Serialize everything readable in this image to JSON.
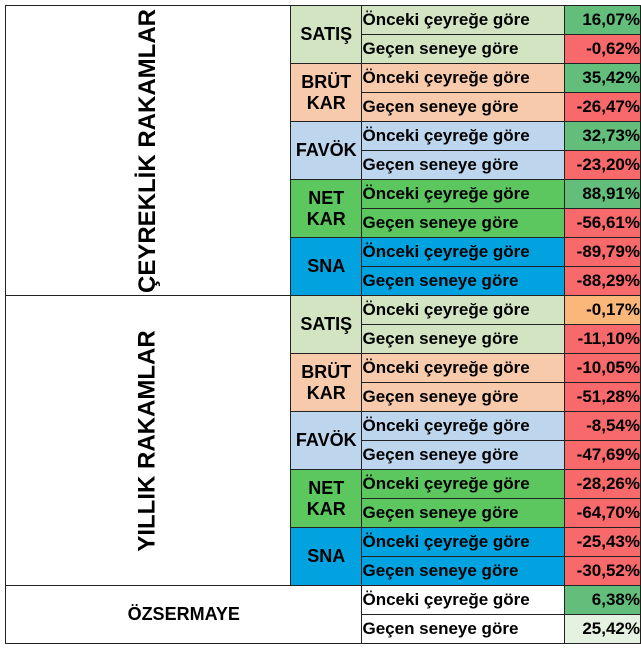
{
  "colors": {
    "satis": "#d2e4c2",
    "brut_kar": "#f7caac",
    "favok": "#bdd6ee",
    "net_kar": "#5cc65f",
    "sna": "#00a3e0",
    "positive": "#63be7b",
    "positive_light": "#e6f2e1",
    "negative": "#f8696b",
    "neutral": "#fbb77a"
  },
  "sections": [
    {
      "label": "ÇEYREKLİK RAKAMLAR",
      "groups": [
        {
          "metric": "SATIŞ",
          "color_key": "satis",
          "rows": [
            {
              "desc": "Önceki çeyreğe göre",
              "value": "16,07%",
              "tone": "positive"
            },
            {
              "desc": "Geçen seneye göre",
              "value": "-0,62%",
              "tone": "negative"
            }
          ]
        },
        {
          "metric": "BRÜT KAR",
          "color_key": "brut_kar",
          "rows": [
            {
              "desc": "Önceki çeyreğe göre",
              "value": "35,42%",
              "tone": "positive"
            },
            {
              "desc": "Geçen seneye göre",
              "value": "-26,47%",
              "tone": "negative"
            }
          ]
        },
        {
          "metric": "FAVÖK",
          "color_key": "favok",
          "rows": [
            {
              "desc": "Önceki çeyreğe göre",
              "value": "32,73%",
              "tone": "positive"
            },
            {
              "desc": "Geçen seneye göre",
              "value": "-23,20%",
              "tone": "negative"
            }
          ]
        },
        {
          "metric": "NET KAR",
          "color_key": "net_kar",
          "rows": [
            {
              "desc": "Önceki çeyreğe göre",
              "value": "88,91%",
              "tone": "positive"
            },
            {
              "desc": "Geçen seneye göre",
              "value": "-56,61%",
              "tone": "negative"
            }
          ]
        },
        {
          "metric": "SNA",
          "color_key": "sna",
          "rows": [
            {
              "desc": "Önceki çeyreğe göre",
              "value": "-89,79%",
              "tone": "negative"
            },
            {
              "desc": "Geçen seneye göre",
              "value": "-88,29%",
              "tone": "negative"
            }
          ]
        }
      ]
    },
    {
      "label": "YILLIK RAKAMLAR",
      "groups": [
        {
          "metric": "SATIŞ",
          "color_key": "satis",
          "rows": [
            {
              "desc": "Önceki çeyreğe göre",
              "value": "-0,17%",
              "tone": "neutral"
            },
            {
              "desc": "Geçen seneye göre",
              "value": "-11,10%",
              "tone": "negative"
            }
          ]
        },
        {
          "metric": "BRÜT KAR",
          "color_key": "brut_kar",
          "rows": [
            {
              "desc": "Önceki çeyreğe göre",
              "value": "-10,05%",
              "tone": "negative"
            },
            {
              "desc": "Geçen seneye göre",
              "value": "-51,28%",
              "tone": "negative"
            }
          ]
        },
        {
          "metric": "FAVÖK",
          "color_key": "favok",
          "rows": [
            {
              "desc": "Önceki çeyreğe göre",
              "value": "-8,54%",
              "tone": "negative"
            },
            {
              "desc": "Geçen seneye göre",
              "value": "-47,69%",
              "tone": "negative"
            }
          ]
        },
        {
          "metric": "NET KAR",
          "color_key": "net_kar",
          "rows": [
            {
              "desc": "Önceki çeyreğe göre",
              "value": "-28,26%",
              "tone": "negative"
            },
            {
              "desc": "Geçen seneye göre",
              "value": "-64,70%",
              "tone": "negative"
            }
          ]
        },
        {
          "metric": "SNA",
          "color_key": "sna",
          "rows": [
            {
              "desc": "Önceki çeyreğe göre",
              "value": "-25,43%",
              "tone": "negative"
            },
            {
              "desc": "Geçen seneye göre",
              "value": "-30,52%",
              "tone": "negative"
            }
          ]
        }
      ]
    }
  ],
  "ozsermaye": {
    "label": "ÖZSERMAYE",
    "rows": [
      {
        "desc": "Önceki çeyreğe göre",
        "value": "6,38%",
        "tone": "positive"
      },
      {
        "desc": "Geçen seneye göre",
        "value": "25,42%",
        "tone": "positive_light"
      }
    ]
  }
}
